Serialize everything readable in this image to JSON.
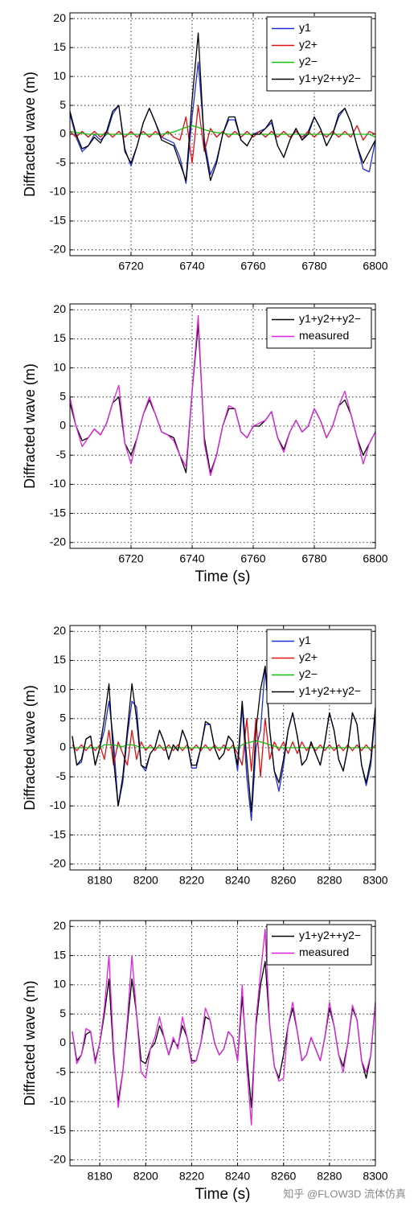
{
  "chart_data": [
    {
      "type": "line",
      "ylabel": "Diffracted wave (m)",
      "xlim": [
        6700,
        6800
      ],
      "ylim": [
        -21,
        21
      ],
      "xticks": [
        6720,
        6740,
        6760,
        6780,
        6800
      ],
      "yticks": [
        -20,
        -15,
        -10,
        -5,
        0,
        5,
        10,
        15,
        20
      ],
      "grid": true,
      "legend": "upper-right",
      "x": [
        6700,
        6702,
        6704,
        6706,
        6708,
        6710,
        6712,
        6714,
        6716,
        6718,
        6720,
        6722,
        6724,
        6726,
        6728,
        6730,
        6732,
        6734,
        6736,
        6738,
        6740,
        6742,
        6744,
        6746,
        6748,
        6750,
        6752,
        6754,
        6756,
        6758,
        6760,
        6762,
        6764,
        6766,
        6768,
        6770,
        6772,
        6774,
        6776,
        6778,
        6780,
        6782,
        6784,
        6786,
        6788,
        6790,
        6792,
        6794,
        6796,
        6798,
        6800
      ],
      "series": [
        {
          "name": "y1",
          "color": "#1f2fd6",
          "values": [
            3.5,
            -0.5,
            -3,
            -2,
            0,
            -1,
            0,
            3.5,
            5,
            -2.5,
            -5.5,
            -2,
            2,
            4.5,
            2,
            -0.5,
            -1,
            -1.5,
            -4,
            -8.5,
            3,
            12.5,
            -1,
            -7,
            -4.5,
            0,
            2.5,
            2.5,
            -1,
            -2,
            0,
            0.5,
            1,
            2,
            -2,
            -4,
            -1,
            1,
            -1,
            0.5,
            3,
            1,
            -2,
            0,
            3,
            4.5,
            2,
            -2,
            -6,
            -6.5,
            -1
          ]
        },
        {
          "name": "y2+",
          "color": "#e01010",
          "values": [
            0.5,
            -0.5,
            0.5,
            -0.5,
            0.5,
            -0.5,
            0.5,
            -0.5,
            0.5,
            -0.5,
            0.5,
            -0.5,
            0.5,
            -0.5,
            0.5,
            -0.5,
            0.5,
            -0.5,
            -1,
            3,
            -5,
            5,
            -3,
            1,
            -0.5,
            0.5,
            -0.5,
            0.5,
            -0.5,
            0.5,
            -0.5,
            0.5,
            -0.5,
            0.5,
            -0.5,
            0.5,
            -0.5,
            0.5,
            -0.5,
            0.5,
            -0.5,
            0.5,
            -0.5,
            0.5,
            -0.5,
            0.5,
            -0.5,
            1.5,
            -1,
            0.5,
            0
          ]
        },
        {
          "name": "y2−",
          "color": "#10c010",
          "values": [
            0.5,
            0.3,
            0.2,
            0,
            0,
            0,
            0,
            0,
            0,
            0,
            0,
            0,
            0,
            0,
            0,
            0,
            0.2,
            0.4,
            0.8,
            1.2,
            1.5,
            1.2,
            0.8,
            0.5,
            0.3,
            0.2,
            0,
            0,
            0,
            0,
            0,
            0,
            0,
            0,
            0,
            0,
            0,
            0,
            0,
            0,
            0,
            0,
            0,
            0,
            0,
            0,
            0,
            0,
            0,
            0,
            -0.5
          ]
        },
        {
          "name": "y1+y2++y2−",
          "color": "#000000",
          "values": [
            4,
            0,
            -2.5,
            -2,
            -0.5,
            -1.5,
            0.5,
            4,
            5,
            -3,
            -5,
            -2,
            2,
            4.5,
            2,
            -1,
            -1.5,
            -2,
            -5,
            -8,
            6,
            17.5,
            -2,
            -8,
            -5,
            0,
            3,
            3,
            -1,
            -2,
            0,
            0,
            1,
            2.5,
            -2,
            -4,
            -1,
            1,
            -1,
            0,
            3,
            1,
            -2,
            0,
            3.5,
            4.5,
            2,
            -2,
            -5,
            -3,
            -1
          ]
        }
      ]
    },
    {
      "type": "line",
      "ylabel": "Diffracted wave (m)",
      "xlabel": "Time (s)",
      "xlim": [
        6700,
        6800
      ],
      "ylim": [
        -21,
        21
      ],
      "xticks": [
        6720,
        6740,
        6760,
        6780,
        6800
      ],
      "yticks": [
        -20,
        -15,
        -10,
        -5,
        0,
        5,
        10,
        15,
        20
      ],
      "grid": true,
      "legend": "upper-right",
      "x": [
        6700,
        6702,
        6704,
        6706,
        6708,
        6710,
        6712,
        6714,
        6716,
        6718,
        6720,
        6722,
        6724,
        6726,
        6728,
        6730,
        6732,
        6734,
        6736,
        6738,
        6740,
        6742,
        6744,
        6746,
        6748,
        6750,
        6752,
        6754,
        6756,
        6758,
        6760,
        6762,
        6764,
        6766,
        6768,
        6770,
        6772,
        6774,
        6776,
        6778,
        6780,
        6782,
        6784,
        6786,
        6788,
        6790,
        6792,
        6794,
        6796,
        6798,
        6800
      ],
      "series": [
        {
          "name": "y1+y2++y2−",
          "color": "#000000",
          "values": [
            4,
            0,
            -2.5,
            -2,
            -0.5,
            -1.5,
            0.5,
            4,
            5,
            -3,
            -5,
            -2,
            2,
            4.5,
            2,
            -1,
            -1.5,
            -2,
            -5,
            -8,
            6,
            17.5,
            -2,
            -8,
            -5,
            0,
            3,
            3,
            -1,
            -2,
            0,
            0,
            1,
            2.5,
            -2,
            -4,
            -1,
            1,
            -1,
            0,
            3,
            1,
            -2,
            0,
            3.5,
            4.5,
            2,
            -2,
            -5,
            -3,
            -1
          ]
        },
        {
          "name": "measured",
          "color": "#e020e0",
          "values": [
            5,
            0,
            -3.5,
            -2,
            -0.5,
            -1.5,
            0.5,
            4,
            7,
            -3,
            -6.5,
            -2,
            2,
            5,
            2,
            -1,
            -1.5,
            -2.5,
            -5,
            -7,
            6,
            19,
            -3,
            -8.5,
            -5,
            0,
            3.5,
            3,
            -1,
            -2,
            0,
            0.5,
            1,
            2.5,
            -2,
            -4.5,
            -1,
            1,
            -1,
            0,
            3,
            1,
            -2,
            0,
            3.5,
            6,
            2,
            -2,
            -6.5,
            -3,
            -1
          ]
        }
      ]
    },
    {
      "type": "line",
      "ylabel": "Diffracted wave (m)",
      "xlim": [
        8167,
        8300
      ],
      "ylim": [
        -21,
        21
      ],
      "xticks": [
        8180,
        8200,
        8220,
        8240,
        8260,
        8280,
        8300
      ],
      "yticks": [
        -20,
        -15,
        -10,
        -5,
        0,
        5,
        10,
        15,
        20
      ],
      "grid": true,
      "legend": "upper-right",
      "x": [
        8168,
        8170,
        8172,
        8174,
        8176,
        8178,
        8180,
        8182,
        8184,
        8186,
        8188,
        8190,
        8192,
        8194,
        8196,
        8198,
        8200,
        8202,
        8204,
        8206,
        8208,
        8210,
        8212,
        8214,
        8216,
        8218,
        8220,
        8222,
        8224,
        8226,
        8228,
        8230,
        8232,
        8234,
        8236,
        8238,
        8240,
        8242,
        8244,
        8246,
        8248,
        8250,
        8252,
        8254,
        8256,
        8258,
        8260,
        8262,
        8264,
        8266,
        8268,
        8270,
        8272,
        8274,
        8276,
        8278,
        8280,
        8282,
        8284,
        8286,
        8288,
        8290,
        8292,
        8294,
        8296,
        8298,
        8300
      ],
      "series": [
        {
          "name": "y1",
          "color": "#1f2fd6",
          "values": [
            2,
            -3,
            -2.5,
            1.5,
            2,
            -3,
            0,
            3,
            8,
            1,
            -10,
            -6,
            2,
            8,
            7,
            -3,
            -4,
            -1,
            0,
            3,
            1,
            -2,
            0.5,
            -0.5,
            3,
            1,
            -3.5,
            -3.5,
            0,
            4,
            4,
            0,
            -2,
            -1,
            2,
            1,
            -4,
            7,
            -5,
            -12.5,
            0,
            3,
            14,
            3,
            -4,
            -7.5,
            -3,
            3,
            6,
            2,
            -3,
            -2,
            1,
            -1,
            -3,
            1,
            6,
            3,
            -2,
            -4,
            0,
            6,
            4,
            -3,
            -6.5,
            -3,
            6
          ]
        },
        {
          "name": "y2+",
          "color": "#e01010",
          "values": [
            0.5,
            -0.5,
            0.5,
            -0.5,
            0.5,
            -0.5,
            0.5,
            -2,
            3,
            -3,
            1,
            -1,
            -3,
            3,
            -2,
            1,
            -0.5,
            0.5,
            -0.5,
            0.5,
            -0.5,
            0.5,
            -0.5,
            0.5,
            -0.5,
            0.5,
            -0.5,
            0.5,
            -0.5,
            0.5,
            -0.5,
            0.5,
            -0.5,
            0.5,
            -0.5,
            0.5,
            -1,
            -3,
            5,
            -4,
            5,
            -5,
            5,
            -2,
            1,
            -0.5,
            1,
            -1,
            1,
            -1,
            1,
            -0.5,
            0.5,
            -0.5,
            0.5,
            -0.5,
            0.5,
            -0.5,
            0.5,
            -0.5,
            0.5,
            -0.5,
            0.5,
            -0.5,
            0.5,
            -0.5,
            0.5
          ]
        },
        {
          "name": "y2−",
          "color": "#10c010",
          "values": [
            0,
            0,
            0,
            0,
            0,
            0,
            0,
            0.5,
            0.5,
            0.5,
            0.3,
            0.2,
            0.5,
            0.5,
            0.3,
            0,
            0,
            0,
            0,
            0,
            0,
            0,
            0,
            0,
            0,
            0,
            0,
            0,
            0,
            0,
            0,
            0,
            0,
            0,
            0,
            0,
            0,
            0.5,
            0.8,
            1,
            1.2,
            1,
            0.8,
            0.5,
            0.3,
            0,
            0,
            0,
            0,
            0,
            0,
            0,
            0,
            0,
            0,
            0,
            0,
            0,
            0,
            0,
            0,
            0,
            0,
            0,
            0,
            0,
            0
          ]
        },
        {
          "name": "y1+y2++y2−",
          "color": "#000000",
          "values": [
            2,
            -3,
            -2,
            1.5,
            2,
            -3,
            0,
            5,
            11,
            -2,
            -10,
            -5,
            3,
            11,
            5,
            -3,
            -3.5,
            -1,
            0,
            3,
            1,
            -2,
            0.5,
            -0.5,
            3,
            1,
            -3,
            -3,
            0,
            4.5,
            4,
            0,
            -2,
            -1,
            2,
            1,
            -3,
            8,
            -2,
            -11,
            3,
            10,
            14,
            3,
            -4,
            -6,
            -2,
            3,
            6,
            2,
            -3,
            -2,
            1,
            -1,
            -3,
            1,
            6,
            3,
            -2,
            -4,
            0,
            6,
            4,
            -3,
            -6,
            -2,
            7
          ]
        }
      ]
    },
    {
      "type": "line",
      "ylabel": "Diffracted wave (m)",
      "xlabel": "Time (s)",
      "xlim": [
        8167,
        8300
      ],
      "ylim": [
        -21,
        21
      ],
      "xticks": [
        8180,
        8200,
        8220,
        8240,
        8260,
        8280,
        8300
      ],
      "yticks": [
        -20,
        -15,
        -10,
        -5,
        0,
        5,
        10,
        15,
        20
      ],
      "grid": true,
      "legend": "upper-right",
      "x": [
        8168,
        8170,
        8172,
        8174,
        8176,
        8178,
        8180,
        8182,
        8184,
        8186,
        8188,
        8190,
        8192,
        8194,
        8196,
        8198,
        8200,
        8202,
        8204,
        8206,
        8208,
        8210,
        8212,
        8214,
        8216,
        8218,
        8220,
        8222,
        8224,
        8226,
        8228,
        8230,
        8232,
        8234,
        8236,
        8238,
        8240,
        8242,
        8244,
        8246,
        8248,
        8250,
        8252,
        8254,
        8256,
        8258,
        8260,
        8262,
        8264,
        8266,
        8268,
        8270,
        8272,
        8274,
        8276,
        8278,
        8280,
        8282,
        8284,
        8286,
        8288,
        8290,
        8292,
        8294,
        8296,
        8298,
        8300
      ],
      "series": [
        {
          "name": "y1+y2++y2−",
          "color": "#000000",
          "values": [
            2,
            -3,
            -2,
            1.5,
            2,
            -3,
            0,
            5,
            11,
            -2,
            -10,
            -5,
            3,
            11,
            5,
            -3,
            -3.5,
            -1,
            0,
            3,
            1,
            -2,
            0.5,
            -0.5,
            3,
            1,
            -3,
            -3,
            0,
            4.5,
            4,
            0,
            -2,
            -1,
            2,
            1,
            -3,
            8,
            -2,
            -11,
            3,
            10,
            14,
            3,
            -4,
            -6,
            -2,
            3,
            6,
            2,
            -3,
            -2,
            1,
            -1,
            -3,
            1,
            6,
            3,
            -2,
            -4,
            0,
            6,
            4,
            -3,
            -6,
            -2,
            7
          ]
        },
        {
          "name": "measured",
          "color": "#e020e0",
          "values": [
            2,
            -3.5,
            -2,
            2.5,
            2,
            -3.5,
            0,
            6,
            15,
            -1,
            -11,
            -5,
            4,
            15,
            5,
            -5,
            -6,
            -1,
            1,
            4.5,
            1,
            -2,
            1,
            -1,
            4.5,
            1,
            -3.5,
            -3,
            0,
            6,
            4,
            0,
            -2,
            -1,
            2,
            1,
            -3,
            10,
            -4,
            -14,
            4,
            12,
            19.5,
            3,
            -4,
            -6.5,
            -6,
            3,
            7,
            2,
            -3,
            -2,
            1,
            -1,
            -3,
            1,
            7,
            3,
            -2,
            -5,
            0,
            6.5,
            4,
            -3,
            -5,
            -2,
            7
          ]
        }
      ]
    }
  ],
  "watermark": "知乎 @FLOW3D 流体仿真"
}
